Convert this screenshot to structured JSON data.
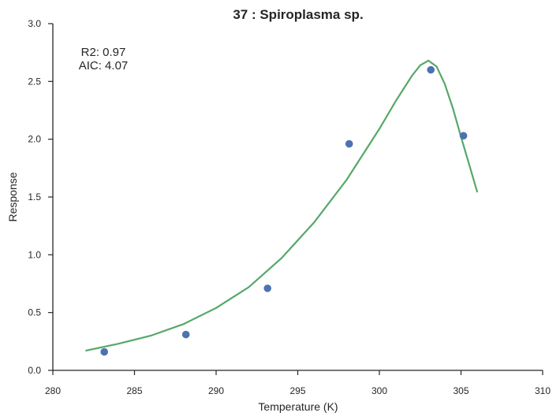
{
  "chart_data": {
    "type": "scatter",
    "title": "37 : Spiroplasma sp.",
    "xlabel": "Temperature (K)",
    "ylabel": "Response",
    "xlim": [
      280,
      310
    ],
    "ylim": [
      0.0,
      3.0
    ],
    "xticks": [
      "280",
      "285",
      "290",
      "295",
      "300",
      "305",
      "310"
    ],
    "yticks": [
      "0.0",
      "0.5",
      "1.0",
      "1.5",
      "2.0",
      "2.5",
      "3.0"
    ],
    "grid": false,
    "annotations": [
      "R2: 0.97",
      "AIC: 4.07"
    ],
    "series": [
      {
        "kind": "points",
        "color": "#4c72b0",
        "x": [
          283.15,
          288.15,
          293.15,
          298.15,
          303.15,
          305.15
        ],
        "y": [
          0.16,
          0.31,
          0.71,
          1.96,
          2.6,
          2.03
        ]
      },
      {
        "kind": "fit-line",
        "color": "#55a868",
        "x": [
          282.0,
          284.0,
          286.0,
          288.0,
          290.0,
          292.0,
          294.0,
          296.0,
          298.0,
          300.0,
          301.0,
          302.0,
          302.5,
          303.0,
          303.5,
          304.0,
          304.5,
          305.0,
          305.5,
          306.0
        ],
        "y": [
          0.17,
          0.23,
          0.3,
          0.4,
          0.54,
          0.72,
          0.97,
          1.28,
          1.65,
          2.09,
          2.33,
          2.55,
          2.64,
          2.68,
          2.63,
          2.48,
          2.27,
          2.02,
          1.78,
          1.54
        ]
      }
    ]
  }
}
